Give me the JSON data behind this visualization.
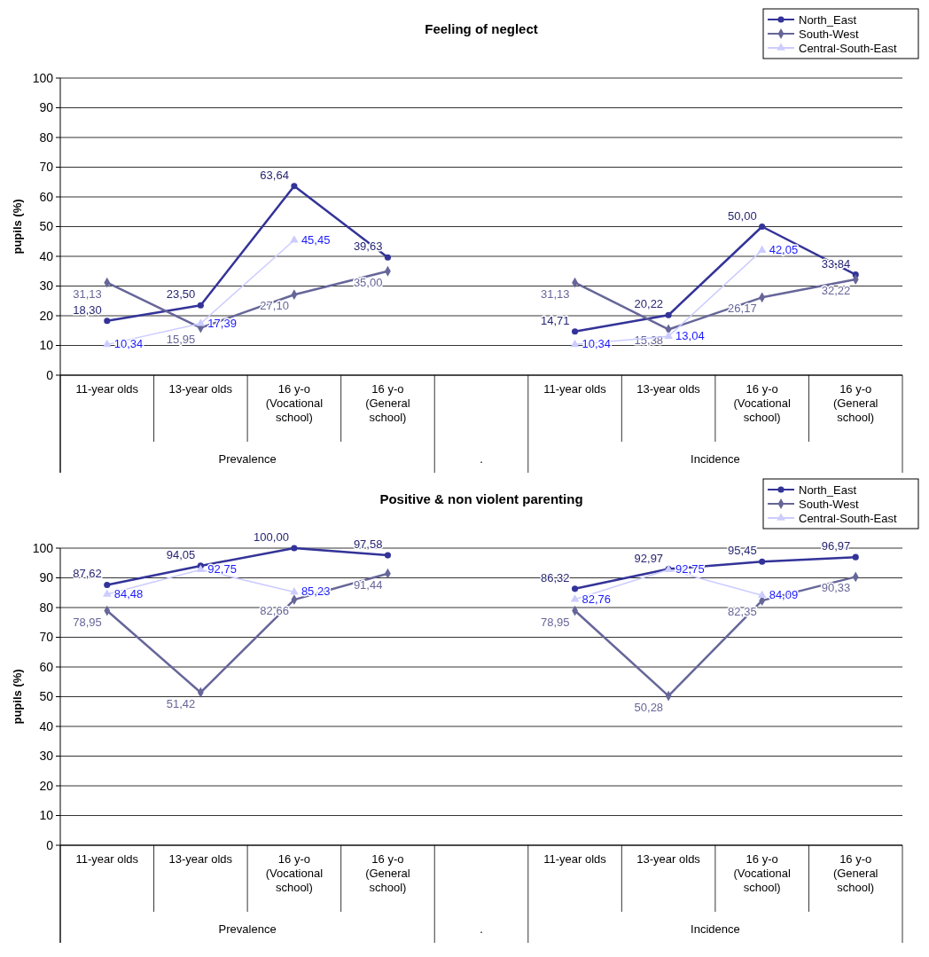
{
  "chart_data": [
    {
      "type": "line",
      "title": "Feeling of neglect",
      "ylabel": "pupils (%)",
      "categories": [
        "11-year olds",
        "13-year olds",
        "16 y-o (Vocational school)",
        "16 y-o (General school)",
        null,
        "11-year olds",
        "13-year olds",
        "16 y-o (Vocational school)",
        "16 y-o (General school)"
      ],
      "annotations": [
        "Prevalence",
        ".",
        "Incidence"
      ],
      "ylim": [
        0,
        100
      ],
      "yticks": [
        0,
        10,
        20,
        30,
        40,
        50,
        60,
        70,
        80,
        90,
        100
      ],
      "grid": "y",
      "legend": "top right",
      "series": [
        {
          "name": "North_East",
          "color": "#333399",
          "marker": "circle",
          "values": [
            18.3,
            23.5,
            63.64,
            39.63,
            null,
            14.71,
            20.22,
            50.0,
            33.84
          ],
          "value_labels": [
            "18,30",
            "23,50",
            "63,64",
            "39,63",
            null,
            "14,71",
            "20,22",
            "50,00",
            "33,84"
          ]
        },
        {
          "name": "South-West",
          "color": "#666699",
          "marker": "diamond",
          "values": [
            31.13,
            15.95,
            27.1,
            35.0,
            null,
            31.13,
            15.38,
            26.17,
            32.22
          ],
          "value_labels": [
            "31,13",
            "15,95",
            "27,10",
            "35,00",
            null,
            "31,13",
            "15,38",
            "26,17",
            "32,22"
          ]
        },
        {
          "name": "Central-South-East",
          "color": "#ccccff",
          "marker": "triangle",
          "values": [
            10.34,
            17.39,
            45.45,
            null,
            null,
            10.34,
            13.04,
            42.05,
            null
          ],
          "value_labels": [
            "10,34",
            "17,39",
            "45,45",
            null,
            null,
            "10,34",
            "13,04",
            "42,05",
            null
          ]
        }
      ]
    },
    {
      "type": "line",
      "title": "Positive & non violent parenting",
      "ylabel": "pupils (%)",
      "categories": [
        "11-year olds",
        "13-year olds",
        "16 y-o (Vocational school)",
        "16 y-o (General school)",
        null,
        "11-year olds",
        "13-year olds",
        "16 y-o (Vocational school)",
        "16 y-o (General school)"
      ],
      "annotations": [
        "Prevalence",
        ".",
        "Incidence"
      ],
      "ylim": [
        0,
        100
      ],
      "yticks": [
        0,
        10,
        20,
        30,
        40,
        50,
        60,
        70,
        80,
        90,
        100
      ],
      "grid": "y",
      "legend": "top right",
      "series": [
        {
          "name": "North_East",
          "color": "#333399",
          "marker": "circle",
          "values": [
            87.62,
            94.05,
            100.0,
            97.58,
            null,
            86.32,
            92.97,
            95.45,
            96.97
          ],
          "value_labels": [
            "87,62",
            "94,05",
            "100,00",
            "97,58",
            null,
            "86,32",
            "92,97",
            "95,45",
            "96,97"
          ]
        },
        {
          "name": "South-West",
          "color": "#666699",
          "marker": "diamond",
          "values": [
            78.95,
            51.42,
            82.66,
            91.44,
            null,
            78.95,
            50.28,
            82.35,
            90.33
          ],
          "value_labels": [
            "78,95",
            "51,42",
            "82,66",
            "91,44",
            null,
            "78,95",
            "50,28",
            "82,35",
            "90,33"
          ]
        },
        {
          "name": "Central-South-East",
          "color": "#ccccff",
          "marker": "triangle",
          "values": [
            84.48,
            92.75,
            85.23,
            null,
            null,
            82.76,
            92.75,
            84.09,
            null
          ],
          "value_labels": [
            "84,48",
            "92,75",
            "85,23",
            null,
            null,
            "82,76",
            "92,75",
            "84,09",
            null
          ]
        }
      ]
    }
  ]
}
